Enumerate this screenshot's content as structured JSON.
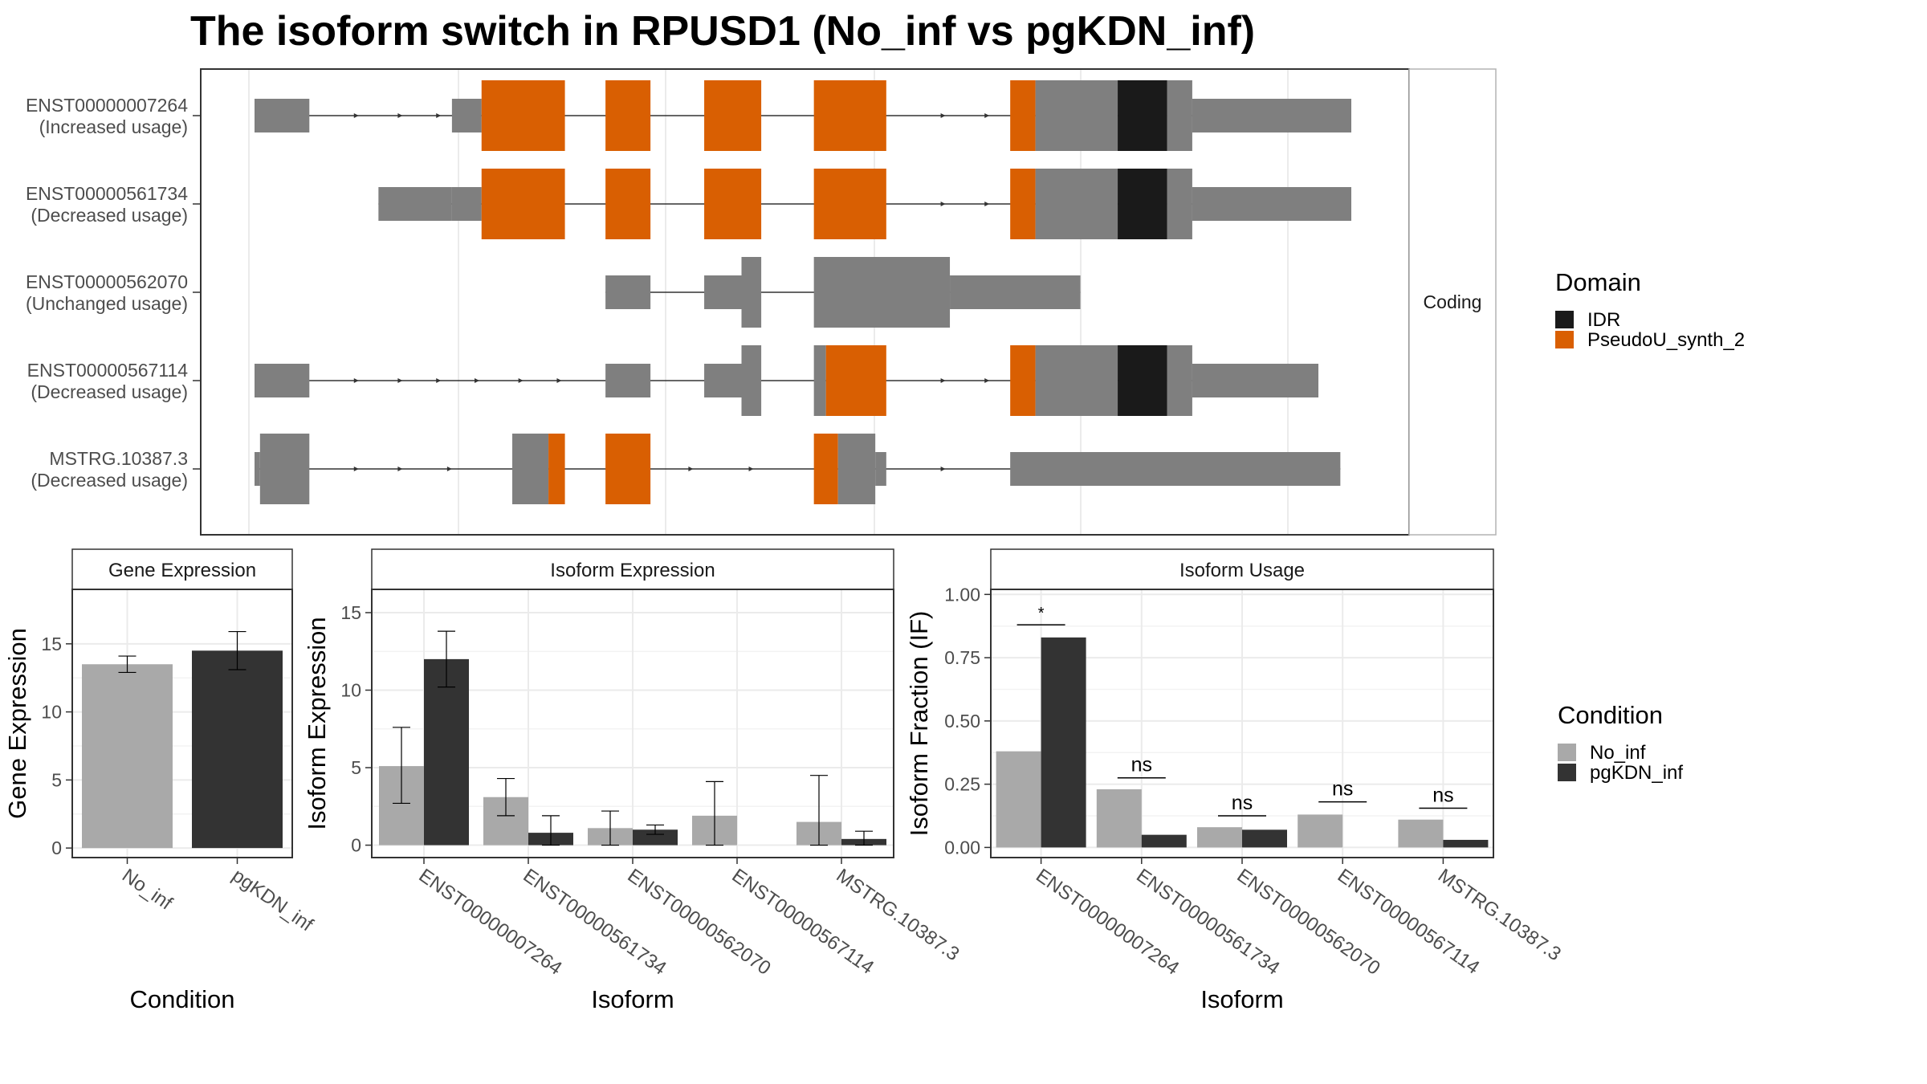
{
  "title": "The isoform switch in RPUSD1 (No_inf vs pgKDN_inf)",
  "colors": {
    "idr": "#1a1a1a",
    "pseudou": "#d95f02",
    "exon": "#7f7f7f",
    "no_inf": "#a9a9a9",
    "pgkdn_inf": "#333333",
    "grid": "#ebebeb",
    "panel_border": "#333333"
  },
  "transcript_panel": {
    "strip_label": "Coding",
    "transcripts": [
      {
        "id": "ENST00000007264",
        "status": "(Increased usage)",
        "segments": [
          [
            0.0,
            0.05,
            "nc"
          ],
          [
            0.18,
            0.207,
            "nc"
          ],
          [
            0.207,
            0.283,
            "pd"
          ],
          [
            0.32,
            0.361,
            "pd"
          ],
          [
            0.41,
            0.462,
            "pd"
          ],
          [
            0.51,
            0.576,
            "pd"
          ],
          [
            0.689,
            0.712,
            "pd"
          ],
          [
            0.712,
            0.787,
            "cds"
          ],
          [
            0.787,
            0.832,
            "idr"
          ],
          [
            0.832,
            0.855,
            "cds"
          ],
          [
            0.855,
            1.0,
            "nc"
          ]
        ],
        "arrows": [
          0.095,
          0.135,
          0.17,
          0.63,
          0.67
        ]
      },
      {
        "id": "ENST00000561734",
        "status": "(Decreased usage)",
        "segments": [
          [
            0.113,
            0.18,
            "nc"
          ],
          [
            0.18,
            0.207,
            "nc"
          ],
          [
            0.207,
            0.283,
            "pd"
          ],
          [
            0.32,
            0.361,
            "pd"
          ],
          [
            0.41,
            0.462,
            "pd"
          ],
          [
            0.51,
            0.576,
            "pd"
          ],
          [
            0.689,
            0.712,
            "pd"
          ],
          [
            0.712,
            0.787,
            "cds"
          ],
          [
            0.787,
            0.832,
            "idr"
          ],
          [
            0.832,
            0.855,
            "cds"
          ],
          [
            0.855,
            1.0,
            "nc"
          ]
        ],
        "arrows": [
          0.63,
          0.67
        ]
      },
      {
        "id": "ENST00000562070",
        "status": "(Unchanged usage)",
        "segments": [
          [
            0.32,
            0.361,
            "nc"
          ],
          [
            0.41,
            0.444,
            "nc"
          ],
          [
            0.444,
            0.462,
            "cds"
          ],
          [
            0.51,
            0.634,
            "cds"
          ],
          [
            0.634,
            0.753,
            "nc"
          ]
        ],
        "arrows": []
      },
      {
        "id": "ENST00000567114",
        "status": "(Decreased usage)",
        "segments": [
          [
            0.0,
            0.05,
            "nc"
          ],
          [
            0.32,
            0.361,
            "nc"
          ],
          [
            0.41,
            0.444,
            "nc"
          ],
          [
            0.444,
            0.462,
            "cds"
          ],
          [
            0.51,
            0.521,
            "cds"
          ],
          [
            0.521,
            0.576,
            "pd"
          ],
          [
            0.689,
            0.712,
            "pd"
          ],
          [
            0.712,
            0.787,
            "cds"
          ],
          [
            0.787,
            0.832,
            "idr"
          ],
          [
            0.832,
            0.855,
            "cds"
          ],
          [
            0.855,
            0.97,
            "nc"
          ]
        ],
        "arrows": [
          0.095,
          0.135,
          0.17,
          0.205,
          0.245,
          0.28,
          0.63,
          0.67
        ]
      },
      {
        "id": "MSTRG.10387.3",
        "status": "(Decreased usage)",
        "segments": [
          [
            0.0,
            0.005,
            "nc"
          ],
          [
            0.005,
            0.05,
            "cds"
          ],
          [
            0.235,
            0.268,
            "cds"
          ],
          [
            0.268,
            0.283,
            "pd"
          ],
          [
            0.32,
            0.361,
            "pd"
          ],
          [
            0.51,
            0.532,
            "pd"
          ],
          [
            0.532,
            0.566,
            "cds"
          ],
          [
            0.566,
            0.576,
            "nc"
          ],
          [
            0.689,
            0.99,
            "nc"
          ]
        ],
        "arrows": [
          0.095,
          0.135,
          0.18,
          0.4,
          0.455,
          0.63
        ]
      }
    ],
    "legend": {
      "title": "Domain",
      "items": [
        "IDR",
        "PseudoU_synth_2"
      ]
    }
  },
  "condition_legend": {
    "title": "Condition",
    "items": [
      "No_inf",
      "pgKDN_inf"
    ]
  },
  "chart_data": [
    {
      "type": "bar",
      "panel_title": "Gene Expression",
      "xlabel": "Condition",
      "ylabel": "Gene Expression",
      "categories": [
        "No_inf",
        "pgKDN_inf"
      ],
      "values": [
        13.5,
        14.5
      ],
      "errors": [
        [
          12.9,
          14.1
        ],
        [
          13.1,
          15.9
        ]
      ],
      "ylim": [
        -0.7,
        19.0
      ],
      "yticks": [
        0,
        5,
        10,
        15
      ],
      "ytick_labels": [
        "0",
        "5",
        "10",
        "15"
      ]
    },
    {
      "type": "bar",
      "panel_title": "Isoform Expression",
      "xlabel": "Isoform",
      "ylabel": "Isoform Expression",
      "categories": [
        "ENST00000007264",
        "ENST00000561734",
        "ENST00000562070",
        "ENST00000567114",
        "MSTRG.10387.3"
      ],
      "series": [
        {
          "name": "No_inf",
          "values": [
            5.1,
            3.1,
            1.1,
            1.9,
            1.5
          ],
          "errors": [
            [
              2.7,
              7.6
            ],
            [
              1.9,
              4.3
            ],
            [
              0.0,
              2.2
            ],
            [
              0.0,
              4.1
            ],
            [
              0.0,
              4.5
            ]
          ]
        },
        {
          "name": "pgKDN_inf",
          "values": [
            12.0,
            0.8,
            1.0,
            0.0,
            0.4
          ],
          "errors": [
            [
              10.2,
              13.8
            ],
            [
              0.0,
              1.9
            ],
            [
              0.7,
              1.3
            ],
            null,
            [
              0.0,
              0.9
            ]
          ]
        }
      ],
      "ylim": [
        -0.8,
        16.5
      ],
      "yticks": [
        0,
        5,
        10,
        15
      ],
      "ytick_labels": [
        "0",
        "5",
        "10",
        "15"
      ]
    },
    {
      "type": "bar",
      "panel_title": "Isoform Usage",
      "xlabel": "Isoform",
      "ylabel": "Isoform Fraction (IF)",
      "categories": [
        "ENST00000007264",
        "ENST00000561734",
        "ENST00000562070",
        "ENST00000567114",
        "MSTRG.10387.3"
      ],
      "series": [
        {
          "name": "No_inf",
          "values": [
            0.38,
            0.23,
            0.08,
            0.13,
            0.11
          ]
        },
        {
          "name": "pgKDN_inf",
          "values": [
            0.83,
            0.05,
            0.07,
            0.0,
            0.03
          ]
        }
      ],
      "significance": [
        "*",
        "ns",
        "ns",
        "ns",
        "ns"
      ],
      "significance_y": [
        0.88,
        0.275,
        0.125,
        0.18,
        0.155
      ],
      "ylim": [
        -0.04,
        1.02
      ],
      "yticks": [
        0,
        0.25,
        0.5,
        0.75,
        1.0
      ],
      "ytick_labels": [
        "0.00",
        "0.25",
        "0.50",
        "0.75",
        "1.00"
      ]
    }
  ]
}
